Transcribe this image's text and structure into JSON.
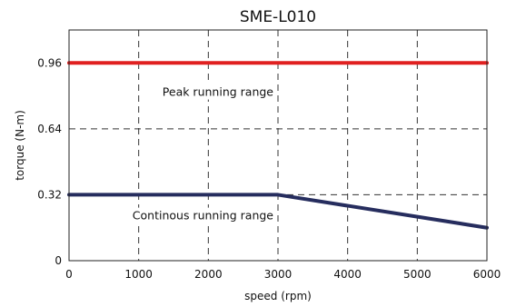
{
  "chart_data": {
    "type": "line",
    "title": "SME-L010",
    "xlabel": "speed (rpm)",
    "ylabel": "torque (N-m)",
    "xlim": [
      0,
      6000
    ],
    "ylim": [
      0,
      1.12
    ],
    "x_ticks": [
      0,
      1000,
      2000,
      3000,
      4000,
      5000,
      6000
    ],
    "x_tick_labels": [
      "0",
      "1000",
      "2000",
      "3000",
      "4000",
      "5000",
      "6000"
    ],
    "y_ticks": [
      0,
      0.32,
      0.64,
      0.96
    ],
    "y_tick_labels": [
      "0",
      "0.32",
      "0.64",
      "0.96"
    ],
    "grid": true,
    "series": [
      {
        "color": "#e02020",
        "x": [
          0,
          6000
        ],
        "y": [
          0.96,
          0.96
        ]
      },
      {
        "color": "#262d5e",
        "x": [
          0,
          3000,
          6000
        ],
        "y": [
          0.32,
          0.32,
          0.16
        ]
      }
    ],
    "annotations": [
      {
        "text": "Peak running range",
        "x": 3000,
        "y": 0.8
      },
      {
        "text": "Continous running range",
        "x": 3000,
        "y": 0.2
      }
    ]
  }
}
